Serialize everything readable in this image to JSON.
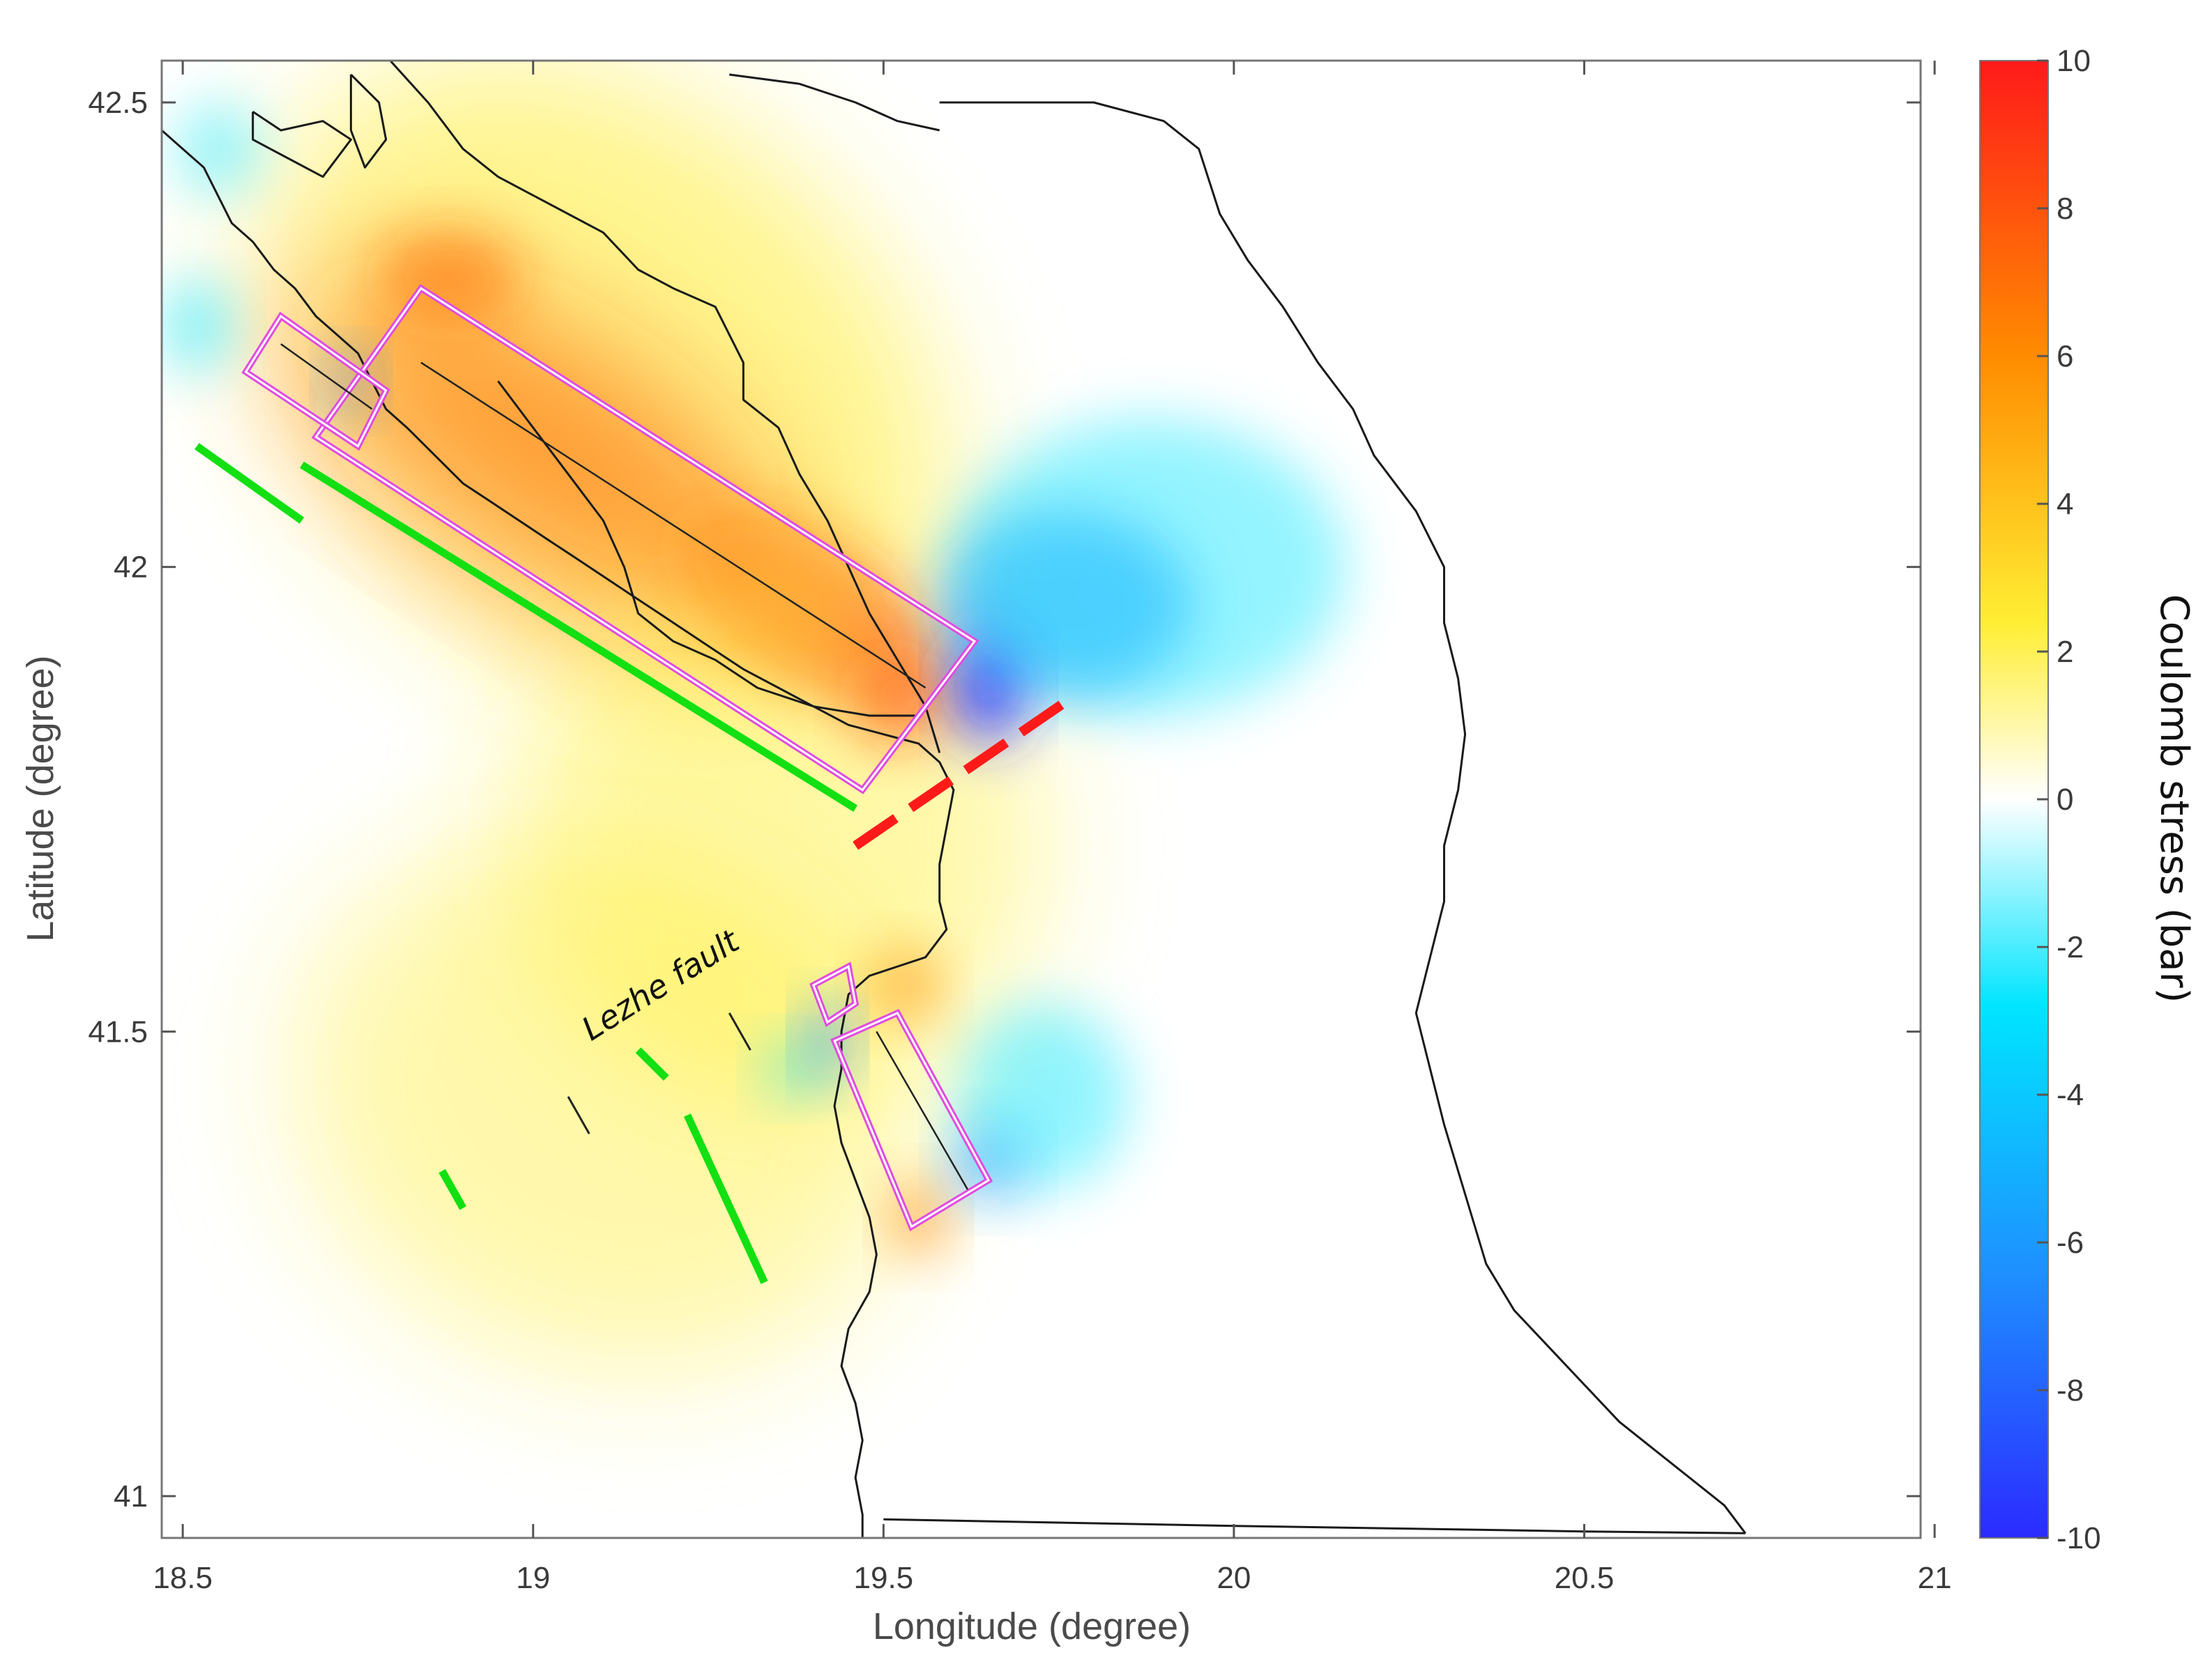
{
  "chart_data": {
    "type": "heatmap",
    "title": "",
    "xlabel": "Longitude (degree)",
    "ylabel": "Latitude  (degree)",
    "xlim": [
      18.47,
      20.98
    ],
    "ylim": [
      40.955,
      42.545
    ],
    "x_ticks": [
      18.5,
      19,
      19.5,
      20,
      20.5,
      21
    ],
    "x_tick_labels": [
      "18.5",
      "19",
      "19.5",
      "20",
      "20.5",
      "21"
    ],
    "y_ticks": [
      41,
      41.5,
      42,
      42.5
    ],
    "y_tick_labels": [
      "41",
      "41.5",
      "42",
      "42.5"
    ],
    "grid": false,
    "colorbar": {
      "label": "Coulomb stress (bar)",
      "range": [
        -10,
        10
      ],
      "ticks": [
        10,
        8,
        6,
        4,
        2,
        0,
        -2,
        -4,
        -6,
        -8,
        -10
      ],
      "tick_labels": [
        "10",
        "8",
        "6",
        "4",
        "2",
        "0",
        "-2",
        "-4",
        "-6",
        "-8",
        "-10"
      ],
      "colors": [
        "#2b2bff",
        "#1e90ff",
        "#00e5ff",
        "#ffffff",
        "#ffee33",
        "#ff8c00",
        "#ff1a1a"
      ]
    },
    "stress_field": [
      {
        "kind": "positive",
        "lon": 19.02,
        "lat": 42.13,
        "value": 8.5,
        "sx": 0.37,
        "sy": 0.12,
        "angle_deg": 33
      },
      {
        "kind": "positive",
        "lon": 19.38,
        "lat": 41.96,
        "value": 7.5,
        "sx": 0.2,
        "sy": 0.08,
        "angle_deg": 33
      },
      {
        "kind": "positive",
        "lon": 19.52,
        "lat": 41.86,
        "value": 9,
        "sx": 0.06,
        "sy": 0.05,
        "angle_deg": 0
      },
      {
        "kind": "positive",
        "lon": 18.88,
        "lat": 42.31,
        "value": 9.5,
        "sx": 0.1,
        "sy": 0.05,
        "angle_deg": 0
      },
      {
        "kind": "positive",
        "lon": 19.1,
        "lat": 42.2,
        "value": 3.5,
        "sx": 0.55,
        "sy": 0.3,
        "angle_deg": 40
      },
      {
        "kind": "positive",
        "lon": 19.35,
        "lat": 41.7,
        "value": 1.2,
        "sx": 0.38,
        "sy": 0.28,
        "angle_deg": 0
      },
      {
        "kind": "positive",
        "lon": 19.1,
        "lat": 41.42,
        "value": 0.9,
        "sx": 0.45,
        "sy": 0.28,
        "angle_deg": 20
      },
      {
        "kind": "positive",
        "lon": 19.55,
        "lat": 41.3,
        "value": 6,
        "sx": 0.04,
        "sy": 0.04,
        "angle_deg": 0
      },
      {
        "kind": "positive",
        "lon": 19.53,
        "lat": 41.55,
        "value": 4.5,
        "sx": 0.05,
        "sy": 0.04,
        "angle_deg": 0
      },
      {
        "kind": "negative",
        "lon": 19.65,
        "lat": 41.87,
        "value": -8.5,
        "sx": 0.05,
        "sy": 0.06,
        "angle_deg": 0
      },
      {
        "kind": "negative",
        "lon": 19.76,
        "lat": 41.96,
        "value": -3.5,
        "sx": 0.18,
        "sy": 0.1,
        "angle_deg": 0
      },
      {
        "kind": "negative",
        "lon": 19.88,
        "lat": 42.0,
        "value": -1.2,
        "sx": 0.28,
        "sy": 0.16,
        "angle_deg": 0
      },
      {
        "kind": "negative",
        "lon": 18.52,
        "lat": 42.26,
        "value": -2.5,
        "sx": 0.05,
        "sy": 0.05,
        "angle_deg": 0
      },
      {
        "kind": "negative",
        "lon": 18.74,
        "lat": 42.2,
        "value": -3.5,
        "sx": 0.03,
        "sy": 0.03,
        "angle_deg": 0
      },
      {
        "kind": "negative",
        "lon": 18.55,
        "lat": 42.45,
        "value": -1,
        "sx": 0.06,
        "sy": 0.05,
        "angle_deg": 0
      },
      {
        "kind": "negative",
        "lon": 19.42,
        "lat": 41.49,
        "value": -6,
        "sx": 0.03,
        "sy": 0.04,
        "angle_deg": 0
      },
      {
        "kind": "negative",
        "lon": 19.37,
        "lat": 41.46,
        "value": -2.5,
        "sx": 0.04,
        "sy": 0.03,
        "angle_deg": 0
      },
      {
        "kind": "negative",
        "lon": 19.65,
        "lat": 41.36,
        "value": -4.5,
        "sx": 0.05,
        "sy": 0.04,
        "angle_deg": 0
      },
      {
        "kind": "negative",
        "lon": 19.73,
        "lat": 41.43,
        "value": -1.3,
        "sx": 0.12,
        "sy": 0.1,
        "angle_deg": 0
      }
    ],
    "rupture_boxes": [
      {
        "corners": [
          [
            18.84,
            42.3
          ],
          [
            19.63,
            41.92
          ],
          [
            19.47,
            41.76
          ],
          [
            18.69,
            42.14
          ]
        ],
        "trace": [
          [
            18.84,
            42.22
          ],
          [
            19.56,
            41.87
          ]
        ]
      },
      {
        "corners": [
          [
            18.64,
            42.27
          ],
          [
            18.79,
            42.19
          ],
          [
            18.75,
            42.13
          ],
          [
            18.59,
            42.21
          ]
        ],
        "trace": [
          [
            18.64,
            42.24
          ],
          [
            18.77,
            42.17
          ]
        ]
      },
      {
        "corners": [
          [
            19.4,
            41.55
          ],
          [
            19.45,
            41.57
          ],
          [
            19.46,
            41.53
          ],
          [
            19.42,
            41.51
          ]
        ],
        "trace": []
      },
      {
        "corners": [
          [
            19.43,
            41.49
          ],
          [
            19.52,
            41.52
          ],
          [
            19.65,
            41.34
          ],
          [
            19.54,
            41.29
          ]
        ],
        "trace": [
          [
            19.49,
            41.5
          ],
          [
            19.62,
            41.33
          ]
        ]
      }
    ],
    "green_faults": [
      [
        [
          18.52,
          42.13
        ],
        [
          18.67,
          42.05
        ]
      ],
      [
        [
          18.67,
          42.11
        ],
        [
          19.46,
          41.74
        ]
      ],
      [
        [
          19.15,
          41.48
        ],
        [
          19.19,
          41.45
        ]
      ],
      [
        [
          19.22,
          41.41
        ],
        [
          19.33,
          41.23
        ]
      ],
      [
        [
          18.87,
          41.35
        ],
        [
          18.9,
          41.31
        ]
      ]
    ],
    "black_faults": [
      [
        [
          19.28,
          41.52
        ],
        [
          19.31,
          41.48
        ]
      ],
      [
        [
          19.05,
          41.43
        ],
        [
          19.08,
          41.39
        ]
      ]
    ],
    "red_fault": [
      [
        19.46,
        41.7
      ],
      [
        19.77,
        41.86
      ]
    ],
    "annotation": {
      "text": "Lezhe fault",
      "lon": 19.19,
      "lat": 41.54,
      "rotation_deg": -32
    },
    "coastline": [
      [
        18.47,
        42.47
      ],
      [
        18.5,
        42.45
      ],
      [
        18.53,
        42.43
      ],
      [
        18.55,
        42.4
      ],
      [
        18.57,
        42.37
      ],
      [
        18.6,
        42.35
      ],
      [
        18.63,
        42.32
      ],
      [
        18.66,
        42.3
      ],
      [
        18.69,
        42.27
      ],
      [
        18.72,
        42.25
      ],
      [
        18.75,
        42.23
      ],
      [
        18.77,
        42.2
      ],
      [
        18.79,
        42.17
      ],
      [
        18.82,
        42.15
      ],
      [
        18.86,
        42.12
      ],
      [
        18.9,
        42.09
      ],
      [
        18.94,
        42.07
      ],
      [
        18.98,
        42.05
      ],
      [
        19.02,
        42.03
      ],
      [
        19.06,
        42.01
      ],
      [
        19.1,
        41.99
      ],
      [
        19.14,
        41.97
      ],
      [
        19.18,
        41.95
      ],
      [
        19.22,
        41.93
      ],
      [
        19.26,
        41.91
      ],
      [
        19.3,
        41.89
      ],
      [
        19.35,
        41.87
      ],
      [
        19.4,
        41.85
      ],
      [
        19.45,
        41.83
      ],
      [
        19.5,
        41.82
      ],
      [
        19.55,
        41.81
      ],
      [
        19.58,
        41.79
      ],
      [
        19.6,
        41.76
      ],
      [
        19.59,
        41.72
      ],
      [
        19.58,
        41.68
      ],
      [
        19.58,
        41.64
      ],
      [
        19.59,
        41.61
      ],
      [
        19.56,
        41.58
      ],
      [
        19.52,
        41.57
      ],
      [
        19.48,
        41.56
      ],
      [
        19.45,
        41.54
      ],
      [
        19.44,
        41.5
      ],
      [
        19.44,
        41.46
      ],
      [
        19.43,
        41.42
      ],
      [
        19.44,
        41.38
      ],
      [
        19.46,
        41.34
      ],
      [
        19.48,
        41.3
      ],
      [
        19.49,
        41.26
      ],
      [
        19.48,
        41.22
      ],
      [
        19.45,
        41.18
      ],
      [
        19.44,
        41.14
      ],
      [
        19.46,
        41.1
      ],
      [
        19.47,
        41.06
      ],
      [
        19.46,
        41.02
      ],
      [
        19.47,
        40.98
      ],
      [
        19.47,
        40.955
      ]
    ],
    "border": [
      [
        18.79,
        42.55
      ],
      [
        18.85,
        42.5
      ],
      [
        18.9,
        42.45
      ],
      [
        18.95,
        42.42
      ],
      [
        19.0,
        42.4
      ],
      [
        19.05,
        42.38
      ],
      [
        19.1,
        42.36
      ],
      [
        19.15,
        42.32
      ],
      [
        19.2,
        42.3
      ],
      [
        19.26,
        42.28
      ],
      [
        19.3,
        42.22
      ],
      [
        19.3,
        42.18
      ],
      [
        19.35,
        42.15
      ],
      [
        19.38,
        42.1
      ],
      [
        19.42,
        42.05
      ],
      [
        19.45,
        42.0
      ],
      [
        19.48,
        41.95
      ],
      [
        19.52,
        41.9
      ],
      [
        19.56,
        41.85
      ],
      [
        19.58,
        41.8
      ]
    ],
    "montenegro_top": [
      [
        19.28,
        42.53
      ],
      [
        19.38,
        42.52
      ],
      [
        19.46,
        42.5
      ],
      [
        19.52,
        42.48
      ],
      [
        19.58,
        42.47
      ]
    ],
    "albania_border": [
      [
        19.58,
        42.5
      ],
      [
        19.7,
        42.5
      ],
      [
        19.8,
        42.5
      ],
      [
        19.9,
        42.48
      ],
      [
        19.95,
        42.45
      ],
      [
        19.98,
        42.38
      ],
      [
        20.02,
        42.33
      ],
      [
        20.07,
        42.28
      ],
      [
        20.12,
        42.22
      ],
      [
        20.17,
        42.17
      ],
      [
        20.2,
        42.12
      ],
      [
        20.26,
        42.06
      ],
      [
        20.3,
        42.0
      ],
      [
        20.3,
        41.94
      ],
      [
        20.32,
        41.88
      ],
      [
        20.33,
        41.82
      ],
      [
        20.32,
        41.76
      ],
      [
        20.3,
        41.7
      ],
      [
        20.3,
        41.64
      ],
      [
        20.28,
        41.58
      ],
      [
        20.26,
        41.52
      ],
      [
        20.28,
        41.46
      ],
      [
        20.3,
        41.4
      ],
      [
        20.32,
        41.35
      ],
      [
        20.34,
        41.3
      ],
      [
        20.36,
        41.25
      ],
      [
        20.4,
        41.2
      ],
      [
        20.45,
        41.16
      ],
      [
        20.5,
        41.12
      ],
      [
        20.55,
        41.08
      ],
      [
        20.6,
        41.05
      ],
      [
        20.65,
        41.02
      ],
      [
        20.7,
        40.99
      ],
      [
        20.73,
        40.96
      ]
    ],
    "south_edge": [
      [
        19.5,
        40.975
      ],
      [
        20.0,
        40.968
      ],
      [
        20.5,
        40.962
      ],
      [
        20.73,
        40.96
      ]
    ],
    "lake_shore": [
      [
        18.95,
        42.2
      ],
      [
        19.0,
        42.15
      ],
      [
        19.05,
        42.1
      ],
      [
        19.1,
        42.05
      ],
      [
        19.13,
        42.0
      ],
      [
        19.15,
        41.95
      ],
      [
        19.2,
        41.92
      ],
      [
        19.26,
        41.9
      ],
      [
        19.32,
        41.87
      ],
      [
        19.4,
        41.85
      ],
      [
        19.48,
        41.84
      ],
      [
        19.55,
        41.84
      ]
    ],
    "islands": [
      [
        [
          18.6,
          42.49
        ],
        [
          18.64,
          42.47
        ],
        [
          18.7,
          42.48
        ],
        [
          18.74,
          42.46
        ],
        [
          18.7,
          42.42
        ],
        [
          18.65,
          42.44
        ],
        [
          18.6,
          42.46
        ],
        [
          18.6,
          42.49
        ]
      ],
      [
        [
          18.74,
          42.53
        ],
        [
          18.78,
          42.5
        ],
        [
          18.79,
          42.46
        ],
        [
          18.76,
          42.43
        ],
        [
          18.74,
          42.47
        ],
        [
          18.74,
          42.53
        ]
      ]
    ]
  }
}
